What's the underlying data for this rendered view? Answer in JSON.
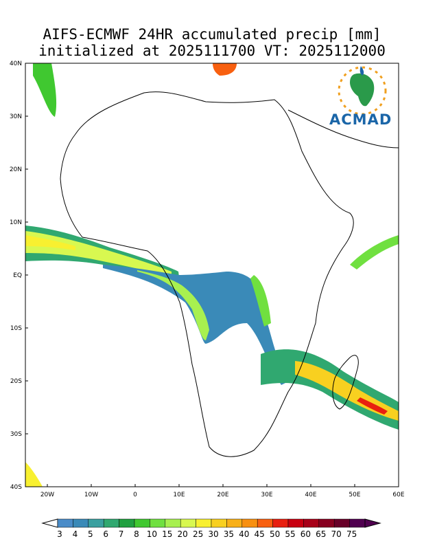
{
  "title": {
    "line1": "AIFS-ECMWF 24HR accumulated precip [mm]",
    "line2": "initialized at 2025111700 VT: 2025112000"
  },
  "logo": {
    "text": "ACMAD",
    "icon": "africa-sun-logo-icon"
  },
  "axes": {
    "lat_labels": [
      "40N",
      "30N",
      "20N",
      "10N",
      "EQ",
      "10S",
      "20S",
      "30S",
      "40S"
    ],
    "lon_labels": [
      "20W",
      "10W",
      "0",
      "10E",
      "20E",
      "30E",
      "40E",
      "50E",
      "60E"
    ]
  },
  "map_extent": {
    "lon": [
      -25,
      60
    ],
    "lat": [
      -40,
      40
    ]
  },
  "colorbar": {
    "levels": [
      "3",
      "4",
      "5",
      "6",
      "7",
      "8",
      "10",
      "15",
      "20",
      "25",
      "30",
      "35",
      "40",
      "45",
      "50",
      "55",
      "60",
      "65",
      "70",
      "75"
    ],
    "colors": [
      "#4a8cc8",
      "#3a8ab8",
      "#3aa0a0",
      "#30a870",
      "#20a040",
      "#40c830",
      "#70e040",
      "#a8f050",
      "#d8f850",
      "#f8f030",
      "#f8d020",
      "#f8b018",
      "#f89010",
      "#f86010",
      "#e82010",
      "#c80010",
      "#a80018",
      "#880020",
      "#680028",
      "#500050"
    ]
  }
}
